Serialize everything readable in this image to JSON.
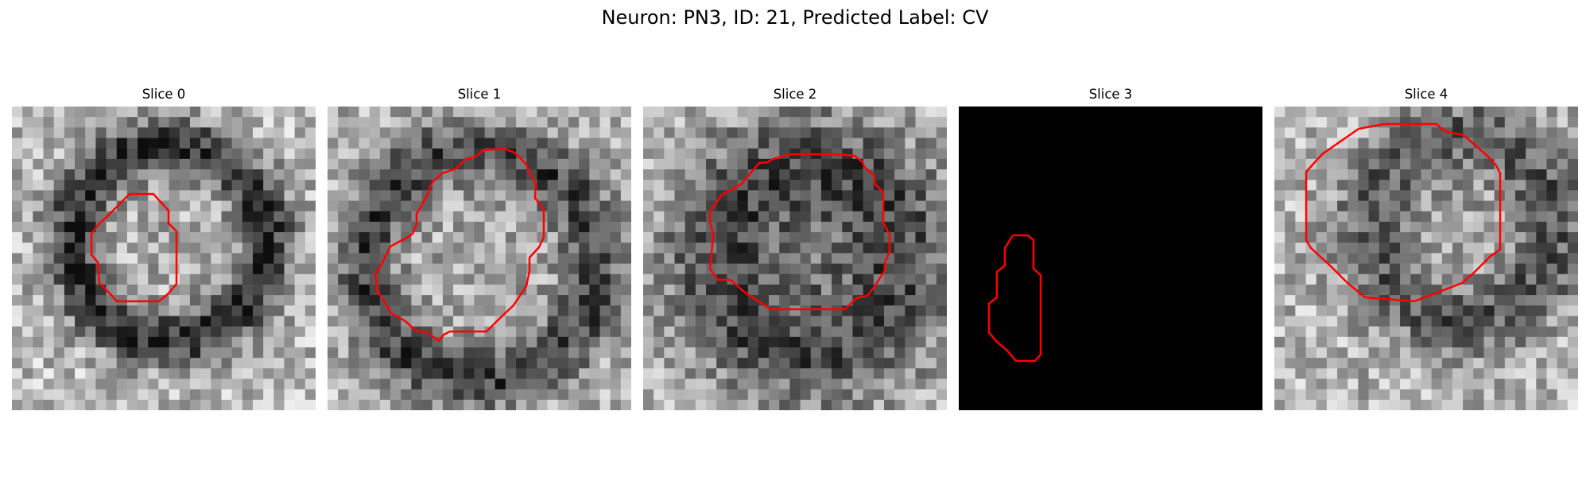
{
  "figure": {
    "title": "Neuron: PN3, ID: 21, Predicted Label: CV"
  },
  "panels": [
    {
      "title": "Slice 0"
    },
    {
      "title": "Slice 1"
    },
    {
      "title": "Slice 2"
    },
    {
      "title": "Slice 3"
    },
    {
      "title": "Slice 4"
    }
  ],
  "colors": {
    "contour": "#ff0000",
    "blank_slice": "#000000"
  }
}
